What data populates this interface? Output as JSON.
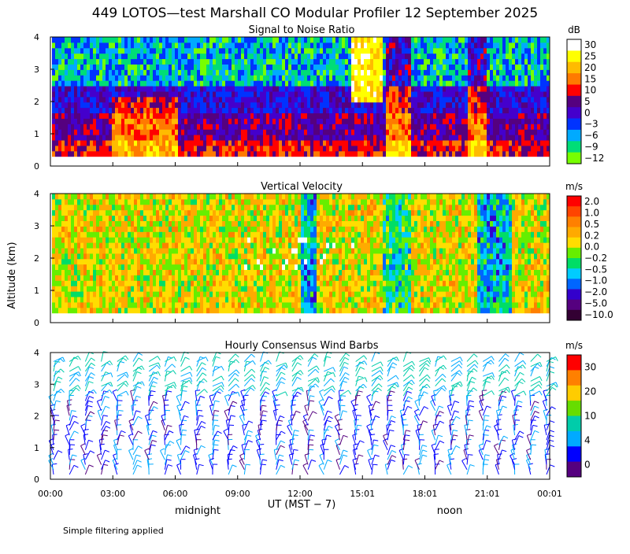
{
  "title": "449 LOTOS—test Marshall CO Modular Profiler 12 September 2025",
  "y_axis_label": "Altitude (km)",
  "x_axis_label": "UT  (MST − 7)",
  "local_labels": [
    "midnight",
    "noon"
  ],
  "footer": "Simple filtering applied",
  "chart_data": [
    {
      "type": "heatmap",
      "title": "Signal to Noise Ratio",
      "unit": "dB",
      "ylim": [
        0,
        4
      ],
      "yticks": [
        "0",
        "1",
        "2",
        "3",
        "4"
      ],
      "xticks": [
        "00:00",
        "03:00",
        "06:00",
        "09:00",
        "12:00",
        "15:01",
        "18:01",
        "21:01",
        "00:01"
      ],
      "color_scale": {
        "labels": [
          "30",
          "25",
          "20",
          "15",
          "10",
          "5",
          "0",
          "−3",
          "−6",
          "−9",
          "−12"
        ],
        "colors": [
          "#ffffff",
          "#ffff00",
          "#ffbb00",
          "#ff7a00",
          "#ff0000",
          "#55007f",
          "#4400cc",
          "#0033ff",
          "#00aaff",
          "#00dd77",
          "#77ff00"
        ]
      }
    },
    {
      "type": "heatmap",
      "title": "Vertical Velocity",
      "unit": "m/s",
      "ylim": [
        0,
        4
      ],
      "yticks": [
        "0",
        "1",
        "2",
        "3",
        "4"
      ],
      "xticks": [
        "00:00",
        "03:00",
        "06:00",
        "09:00",
        "12:00",
        "15:01",
        "18:01",
        "21:01",
        "00:01"
      ],
      "color_scale": {
        "labels": [
          "2.0",
          "1.0",
          "0.5",
          "0.2",
          "0.0",
          "−0.2",
          "−0.5",
          "−1.0",
          "−2.0",
          "−5.0",
          "−10.0"
        ],
        "colors": [
          "#ff0000",
          "#ff4400",
          "#ff8000",
          "#ffaa00",
          "#ffdd00",
          "#66ee00",
          "#00dd66",
          "#00ccff",
          "#0066ff",
          "#3300cc",
          "#55007f",
          "#330033"
        ]
      }
    },
    {
      "type": "scatter",
      "title": "Hourly Consensus Wind Barbs",
      "unit": "m/s",
      "ylim": [
        0,
        4
      ],
      "yticks": [
        "0",
        "1",
        "2",
        "3",
        "4"
      ],
      "xticks": [
        "00:00",
        "03:00",
        "06:00",
        "09:00",
        "12:00",
        "15:01",
        "18:01",
        "21:01",
        "00:01"
      ],
      "color_scale": {
        "labels": [
          "30",
          "20",
          "10",
          "4",
          "0"
        ],
        "colors": [
          "#ff0000",
          "#ff8000",
          "#ffcc00",
          "#66dd00",
          "#00ccaa",
          "#00aaff",
          "#0000ff",
          "#55007f"
        ]
      }
    }
  ]
}
